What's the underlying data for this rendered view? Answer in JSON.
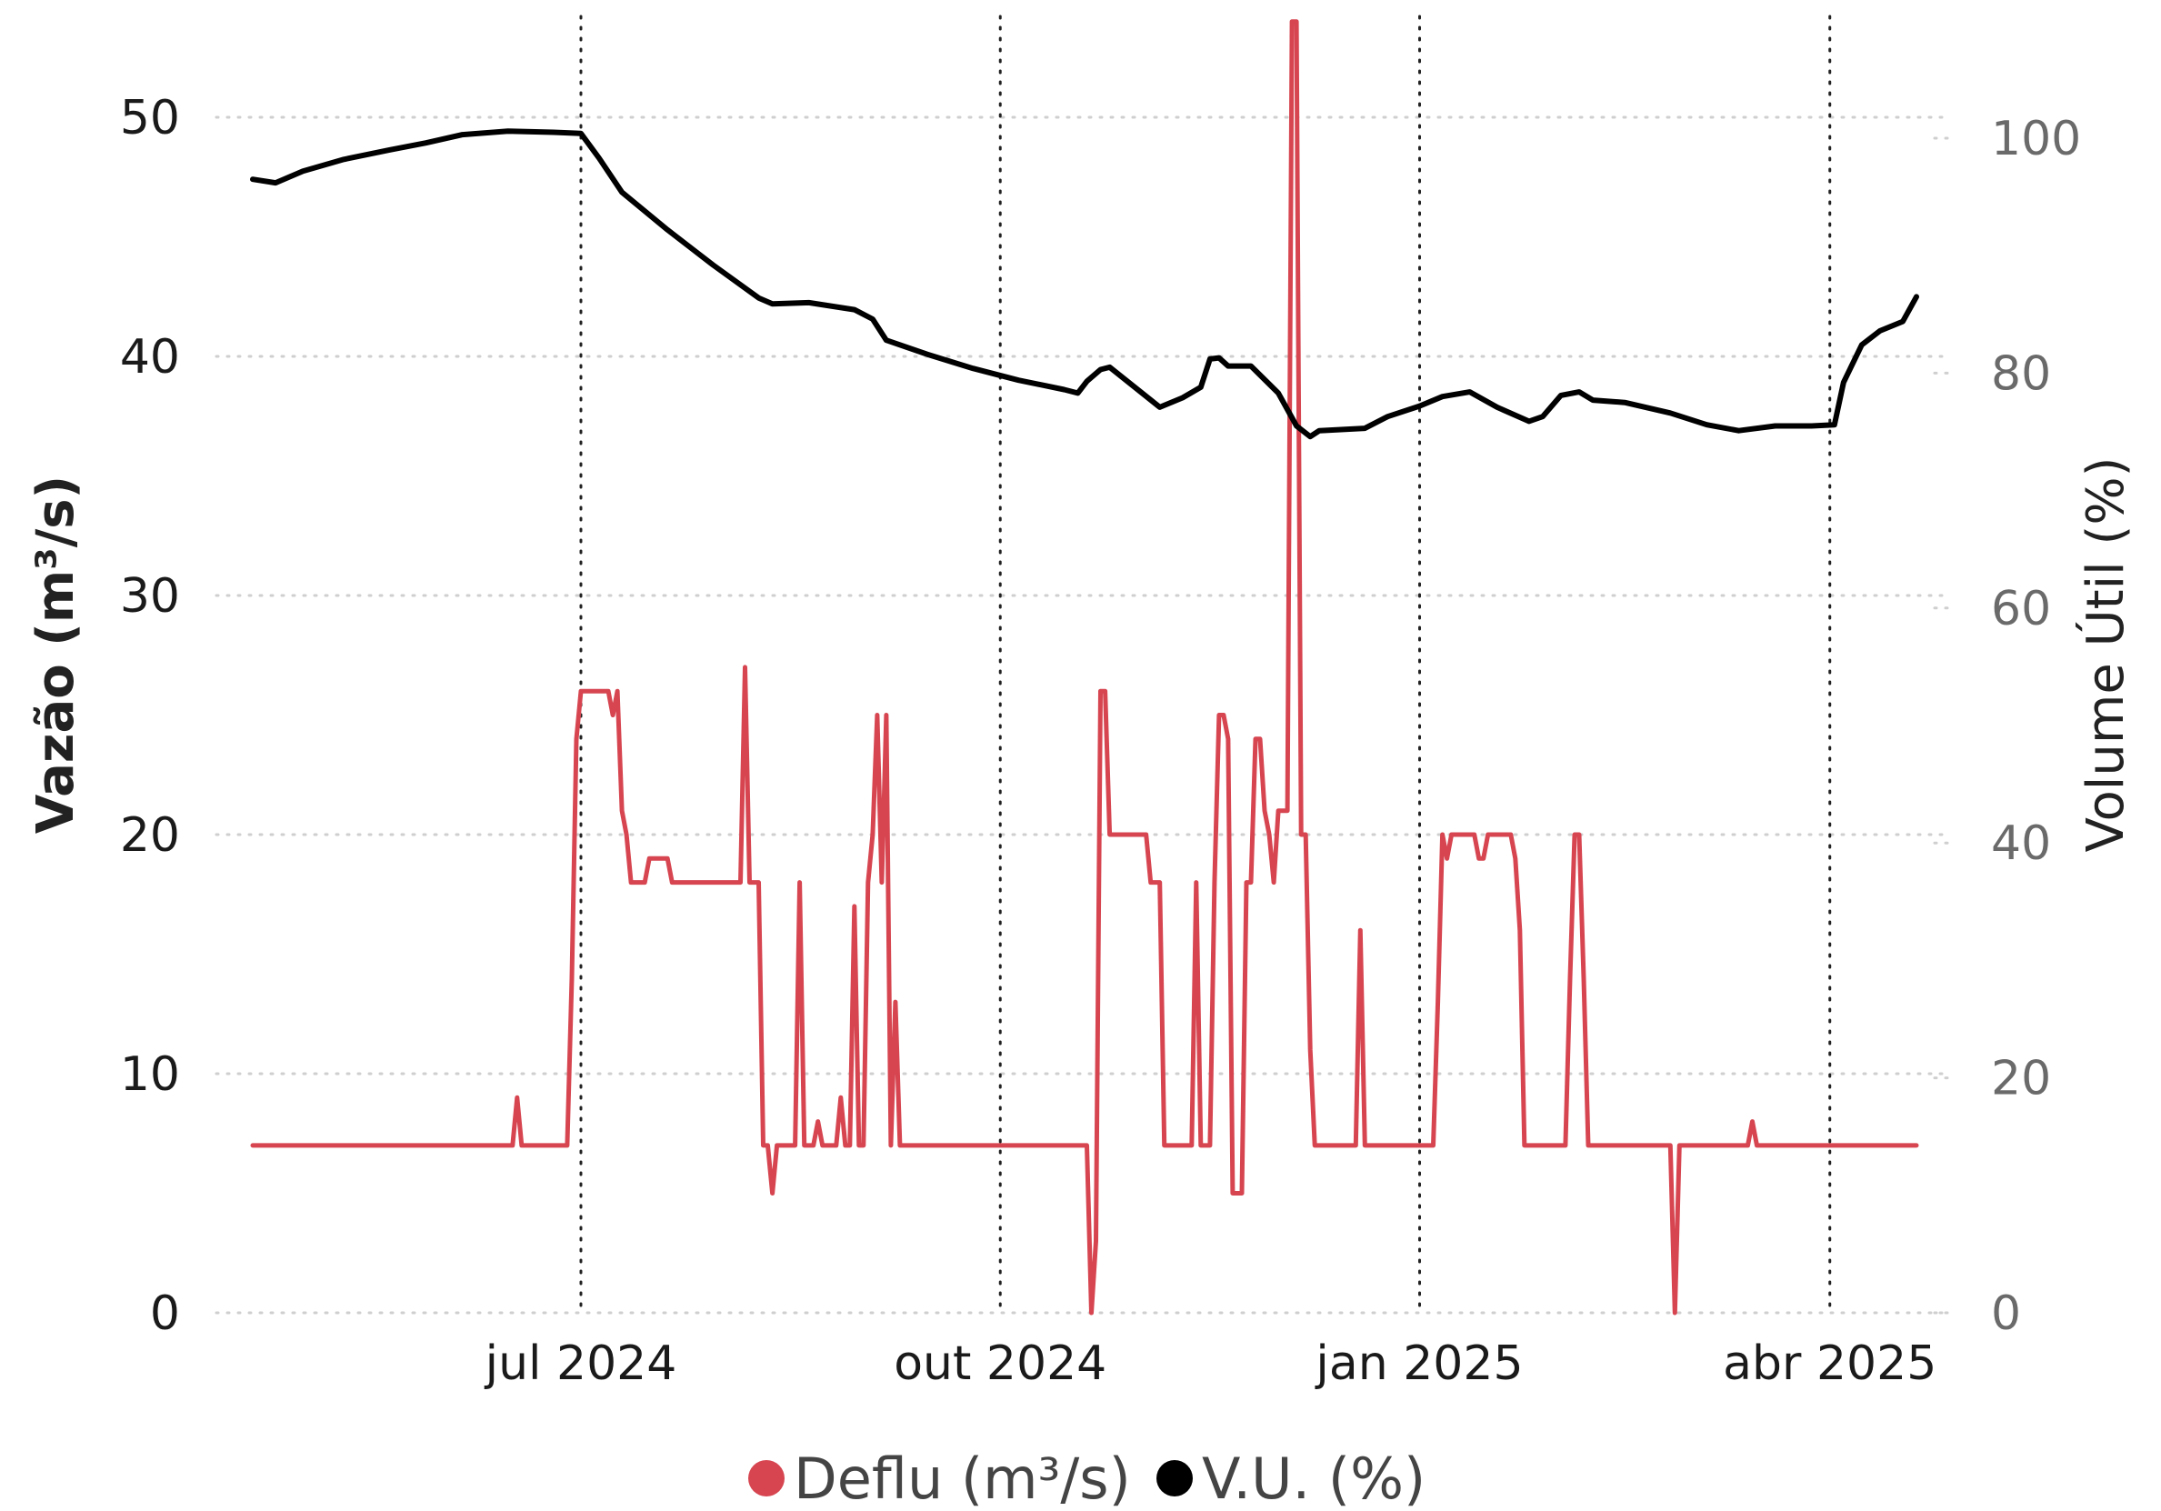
{
  "chart_data": {
    "type": "line",
    "x_ticks": [
      {
        "date": "2024-07-01",
        "label": "jul 2024"
      },
      {
        "date": "2024-10-01",
        "label": "out 2024"
      },
      {
        "date": "2025-01-01",
        "label": "jan 2025"
      },
      {
        "date": "2025-04-01",
        "label": "abr 2025"
      }
    ],
    "y_left": {
      "label": "Vazão (m³/s)",
      "range": [
        0,
        54
      ],
      "ticks": [
        0,
        10,
        20,
        30,
        40,
        50
      ]
    },
    "y_right": {
      "label": "Volume Útil (%)",
      "range": [
        0,
        110
      ],
      "ticks": [
        0,
        20,
        40,
        60,
        80,
        100
      ]
    },
    "grid": true,
    "legend_position": "bottom-center",
    "series": [
      {
        "name": "Deflu (m³/s)",
        "axis": "left",
        "color": "#d64550",
        "points": [
          [
            "2024-04-20",
            7
          ],
          [
            "2024-06-16",
            7
          ],
          [
            "2024-06-17",
            9
          ],
          [
            "2024-06-18",
            7
          ],
          [
            "2024-06-28",
            7
          ],
          [
            "2024-06-29",
            14
          ],
          [
            "2024-06-30",
            24
          ],
          [
            "2024-07-01",
            26
          ],
          [
            "2024-07-07",
            26
          ],
          [
            "2024-07-08",
            25
          ],
          [
            "2024-07-09",
            26
          ],
          [
            "2024-07-10",
            21
          ],
          [
            "2024-07-11",
            20
          ],
          [
            "2024-07-12",
            18
          ],
          [
            "2024-07-15",
            18
          ],
          [
            "2024-07-16",
            19
          ],
          [
            "2024-07-20",
            19
          ],
          [
            "2024-07-21",
            18
          ],
          [
            "2024-08-05",
            18
          ],
          [
            "2024-08-06",
            27
          ],
          [
            "2024-08-07",
            18
          ],
          [
            "2024-08-09",
            18
          ],
          [
            "2024-08-10",
            7
          ],
          [
            "2024-08-11",
            7
          ],
          [
            "2024-08-12",
            5
          ],
          [
            "2024-08-13",
            7
          ],
          [
            "2024-08-17",
            7
          ],
          [
            "2024-08-18",
            18
          ],
          [
            "2024-08-19",
            7
          ],
          [
            "2024-08-21",
            7
          ],
          [
            "2024-08-22",
            8
          ],
          [
            "2024-08-23",
            7
          ],
          [
            "2024-08-26",
            7
          ],
          [
            "2024-08-27",
            9
          ],
          [
            "2024-08-28",
            7
          ],
          [
            "2024-08-29",
            7
          ],
          [
            "2024-08-30",
            17
          ],
          [
            "2024-08-31",
            7
          ],
          [
            "2024-09-01",
            7
          ],
          [
            "2024-09-02",
            18
          ],
          [
            "2024-09-03",
            20
          ],
          [
            "2024-09-04",
            25
          ],
          [
            "2024-09-05",
            18
          ],
          [
            "2024-09-06",
            25
          ],
          [
            "2024-09-07",
            7
          ],
          [
            "2024-09-08",
            13
          ],
          [
            "2024-09-09",
            7
          ],
          [
            "2024-10-20",
            7
          ],
          [
            "2024-10-21",
            0
          ],
          [
            "2024-10-22",
            3
          ],
          [
            "2024-10-23",
            26
          ],
          [
            "2024-10-24",
            26
          ],
          [
            "2024-10-25",
            20
          ],
          [
            "2024-11-02",
            20
          ],
          [
            "2024-11-03",
            18
          ],
          [
            "2024-11-05",
            18
          ],
          [
            "2024-11-06",
            7
          ],
          [
            "2024-11-12",
            7
          ],
          [
            "2024-11-13",
            18
          ],
          [
            "2024-11-14",
            7
          ],
          [
            "2024-11-16",
            7
          ],
          [
            "2024-11-17",
            18
          ],
          [
            "2024-11-18",
            25
          ],
          [
            "2024-11-19",
            25
          ],
          [
            "2024-11-20",
            24
          ],
          [
            "2024-11-21",
            5
          ],
          [
            "2024-11-23",
            5
          ],
          [
            "2024-11-24",
            18
          ],
          [
            "2024-11-25",
            18
          ],
          [
            "2024-11-26",
            24
          ],
          [
            "2024-11-27",
            24
          ],
          [
            "2024-11-28",
            21
          ],
          [
            "2024-11-29",
            20
          ],
          [
            "2024-11-30",
            18
          ],
          [
            "2024-12-01",
            21
          ],
          [
            "2024-12-03",
            21
          ],
          [
            "2024-12-04",
            54
          ],
          [
            "2024-12-05",
            54
          ],
          [
            "2024-12-06",
            20
          ],
          [
            "2024-12-07",
            20
          ],
          [
            "2024-12-08",
            11
          ],
          [
            "2024-12-09",
            7
          ],
          [
            "2024-12-18",
            7
          ],
          [
            "2024-12-19",
            16
          ],
          [
            "2024-12-20",
            7
          ],
          [
            "2025-01-04",
            7
          ],
          [
            "2025-01-05",
            13
          ],
          [
            "2025-01-06",
            20
          ],
          [
            "2025-01-07",
            19
          ],
          [
            "2025-01-08",
            20
          ],
          [
            "2025-01-13",
            20
          ],
          [
            "2025-01-14",
            19
          ],
          [
            "2025-01-15",
            19
          ],
          [
            "2025-01-16",
            20
          ],
          [
            "2025-01-21",
            20
          ],
          [
            "2025-01-22",
            19
          ],
          [
            "2025-01-23",
            16
          ],
          [
            "2025-01-24",
            7
          ],
          [
            "2025-02-02",
            7
          ],
          [
            "2025-02-03",
            14
          ],
          [
            "2025-02-04",
            20
          ],
          [
            "2025-02-05",
            20
          ],
          [
            "2025-02-06",
            14
          ],
          [
            "2025-02-07",
            7
          ],
          [
            "2025-02-25",
            7
          ],
          [
            "2025-02-26",
            0
          ],
          [
            "2025-02-27",
            7
          ],
          [
            "2025-03-14",
            7
          ],
          [
            "2025-03-15",
            8
          ],
          [
            "2025-03-16",
            7
          ],
          [
            "2025-04-20",
            7
          ]
        ]
      },
      {
        "name": "V.U. (%)",
        "axis": "right",
        "color": "#000000",
        "points": [
          [
            "2024-04-20",
            96.5
          ],
          [
            "2024-04-25",
            96.2
          ],
          [
            "2024-05-01",
            97.2
          ],
          [
            "2024-05-10",
            98.2
          ],
          [
            "2024-05-20",
            99.0
          ],
          [
            "2024-05-28",
            99.6
          ],
          [
            "2024-06-05",
            100.3
          ],
          [
            "2024-06-15",
            100.6
          ],
          [
            "2024-06-25",
            100.5
          ],
          [
            "2024-07-01",
            100.4
          ],
          [
            "2024-07-05",
            98.3
          ],
          [
            "2024-07-10",
            95.4
          ],
          [
            "2024-07-20",
            92.2
          ],
          [
            "2024-07-30",
            89.2
          ],
          [
            "2024-08-09",
            86.4
          ],
          [
            "2024-08-12",
            85.9
          ],
          [
            "2024-08-20",
            86.0
          ],
          [
            "2024-08-30",
            85.4
          ],
          [
            "2024-09-03",
            84.6
          ],
          [
            "2024-09-06",
            82.8
          ],
          [
            "2024-09-15",
            81.6
          ],
          [
            "2024-09-25",
            80.4
          ],
          [
            "2024-10-05",
            79.4
          ],
          [
            "2024-10-15",
            78.6
          ],
          [
            "2024-10-18",
            78.3
          ],
          [
            "2024-10-20",
            79.3
          ],
          [
            "2024-10-23",
            80.3
          ],
          [
            "2024-10-25",
            80.5
          ],
          [
            "2024-11-05",
            77.1
          ],
          [
            "2024-11-10",
            77.9
          ],
          [
            "2024-11-14",
            78.8
          ],
          [
            "2024-11-16",
            81.2
          ],
          [
            "2024-11-18",
            81.3
          ],
          [
            "2024-11-20",
            80.6
          ],
          [
            "2024-11-25",
            80.6
          ],
          [
            "2024-12-01",
            78.3
          ],
          [
            "2024-12-05",
            75.5
          ],
          [
            "2024-12-08",
            74.6
          ],
          [
            "2024-12-10",
            75.1
          ],
          [
            "2024-12-20",
            75.3
          ],
          [
            "2024-12-25",
            76.3
          ],
          [
            "2025-01-01",
            77.2
          ],
          [
            "2025-01-06",
            78.0
          ],
          [
            "2025-01-12",
            78.4
          ],
          [
            "2025-01-18",
            77.1
          ],
          [
            "2025-01-25",
            75.9
          ],
          [
            "2025-01-28",
            76.3
          ],
          [
            "2025-02-01",
            78.1
          ],
          [
            "2025-02-05",
            78.4
          ],
          [
            "2025-02-08",
            77.7
          ],
          [
            "2025-02-15",
            77.5
          ],
          [
            "2025-02-25",
            76.6
          ],
          [
            "2025-03-05",
            75.6
          ],
          [
            "2025-03-12",
            75.1
          ],
          [
            "2025-03-20",
            75.5
          ],
          [
            "2025-03-28",
            75.5
          ],
          [
            "2025-04-02",
            75.6
          ],
          [
            "2025-04-04",
            79.2
          ],
          [
            "2025-04-08",
            82.4
          ],
          [
            "2025-04-12",
            83.6
          ],
          [
            "2025-04-17",
            84.4
          ],
          [
            "2025-04-20",
            86.5
          ]
        ]
      }
    ]
  }
}
